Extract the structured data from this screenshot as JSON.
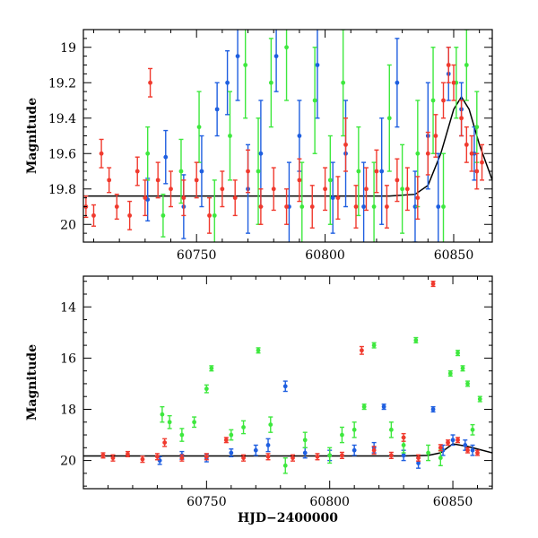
{
  "colors": {
    "blue": "#1f5fe0",
    "green": "#3ee83e",
    "red": "#f03a2e",
    "model": "#000000"
  },
  "chart_data": [
    {
      "type": "scatter",
      "panel": "top",
      "title": "",
      "xlabel": "",
      "ylabel": "Magnitude",
      "xlim": [
        60706,
        60865
      ],
      "ylim": [
        20.1,
        18.9
      ],
      "yaxis_inverted": true,
      "xticks": [
        60750,
        60800,
        60850
      ],
      "yticks": [
        19,
        19.2,
        19.4,
        19.6,
        19.8,
        20
      ],
      "grid": false,
      "legend": "none",
      "series": [
        {
          "color": "blue",
          "points": [
            [
              60731,
              19.86,
              0.12
            ],
            [
              60738,
              19.62,
              0.15
            ],
            [
              60745,
              19.9,
              0.18
            ],
            [
              60752,
              19.7,
              0.2
            ],
            [
              60758,
              19.35,
              0.15
            ],
            [
              60762,
              19.2,
              0.18
            ],
            [
              60766,
              19.05,
              0.25
            ],
            [
              60770,
              19.8,
              0.25
            ],
            [
              60775,
              19.6,
              0.3
            ],
            [
              60781,
              19.05,
              0.2
            ],
            [
              60786,
              19.9,
              0.25
            ],
            [
              60790,
              19.5,
              0.2
            ],
            [
              60797,
              19.1,
              0.3
            ],
            [
              60803,
              19.85,
              0.2
            ],
            [
              60808,
              19.6,
              0.3
            ],
            [
              60815,
              19.9,
              0.25
            ],
            [
              60822,
              19.7,
              0.3
            ],
            [
              60828,
              19.2,
              0.25
            ],
            [
              60835,
              19.9,
              0.2
            ],
            [
              60840,
              19.5,
              0.3
            ],
            [
              60844,
              19.9,
              0.3
            ],
            [
              60848,
              19.15,
              0.15
            ],
            [
              60853,
              19.35,
              0.15
            ],
            [
              60858,
              19.6,
              0.15
            ]
          ]
        },
        {
          "color": "green",
          "points": [
            [
              60731,
              19.6,
              0.15
            ],
            [
              60737,
              19.95,
              0.12
            ],
            [
              60744,
              19.7,
              0.18
            ],
            [
              60751,
              19.45,
              0.2
            ],
            [
              60757,
              19.95,
              0.2
            ],
            [
              60763,
              19.5,
              0.25
            ],
            [
              60769,
              19.1,
              0.3
            ],
            [
              60774,
              19.7,
              0.3
            ],
            [
              60779,
              19.2,
              0.25
            ],
            [
              60785,
              19.0,
              0.3
            ],
            [
              60791,
              19.9,
              0.25
            ],
            [
              60796,
              19.3,
              0.3
            ],
            [
              60802,
              19.75,
              0.25
            ],
            [
              60807,
              19.2,
              0.3
            ],
            [
              60813,
              19.7,
              0.25
            ],
            [
              60819,
              19.9,
              0.25
            ],
            [
              60825,
              19.4,
              0.3
            ],
            [
              60830,
              19.8,
              0.25
            ],
            [
              60836,
              19.6,
              0.3
            ],
            [
              60842,
              19.3,
              0.3
            ],
            [
              60846,
              19.9,
              0.3
            ],
            [
              60851,
              19.2,
              0.2
            ],
            [
              60855,
              19.1,
              0.2
            ],
            [
              60859,
              19.45,
              0.2
            ]
          ]
        },
        {
          "color": "red",
          "points": [
            [
              60707,
              19.9,
              0.06
            ],
            [
              60710,
              19.95,
              0.06
            ],
            [
              60713,
              19.6,
              0.08
            ],
            [
              60716,
              19.75,
              0.07
            ],
            [
              60719,
              19.9,
              0.07
            ],
            [
              60724,
              19.95,
              0.08
            ],
            [
              60727,
              19.7,
              0.08
            ],
            [
              60730,
              19.85,
              0.1
            ],
            [
              60732,
              19.2,
              0.08
            ],
            [
              60735,
              19.75,
              0.1
            ],
            [
              60740,
              19.8,
              0.1
            ],
            [
              60745,
              19.85,
              0.1
            ],
            [
              60750,
              19.75,
              0.1
            ],
            [
              60755,
              19.95,
              0.1
            ],
            [
              60760,
              19.8,
              0.1
            ],
            [
              60765,
              19.85,
              0.1
            ],
            [
              60770,
              19.7,
              0.12
            ],
            [
              60775,
              19.9,
              0.1
            ],
            [
              60780,
              19.8,
              0.12
            ],
            [
              60785,
              19.9,
              0.1
            ],
            [
              60790,
              19.75,
              0.12
            ],
            [
              60795,
              19.9,
              0.12
            ],
            [
              60800,
              19.8,
              0.12
            ],
            [
              60805,
              19.85,
              0.12
            ],
            [
              60808,
              19.55,
              0.15
            ],
            [
              60812,
              19.9,
              0.12
            ],
            [
              60816,
              19.8,
              0.12
            ],
            [
              60820,
              19.7,
              0.12
            ],
            [
              60824,
              19.9,
              0.12
            ],
            [
              60828,
              19.75,
              0.12
            ],
            [
              60832,
              19.8,
              0.12
            ],
            [
              60836,
              19.85,
              0.12
            ],
            [
              60840,
              19.6,
              0.12
            ],
            [
              60843,
              19.5,
              0.12
            ],
            [
              60846,
              19.3,
              0.1
            ],
            [
              60848,
              19.1,
              0.1
            ],
            [
              60850,
              19.2,
              0.1
            ],
            [
              60853,
              19.4,
              0.1
            ],
            [
              60855,
              19.55,
              0.1
            ],
            [
              60857,
              19.6,
              0.1
            ],
            [
              60859,
              19.7,
              0.1
            ],
            [
              60861,
              19.65,
              0.1
            ]
          ]
        }
      ],
      "model_curve": {
        "color": "model",
        "x": [
          60706,
          60735,
          60760,
          60790,
          60810,
          60825,
          60835,
          60840,
          60845,
          60850,
          60853,
          60856,
          60860,
          60865
        ],
        "y": [
          19.84,
          19.84,
          19.84,
          19.84,
          19.84,
          19.84,
          19.83,
          19.78,
          19.6,
          19.35,
          19.28,
          19.35,
          19.55,
          19.75
        ]
      }
    },
    {
      "type": "scatter",
      "panel": "bottom",
      "title": "",
      "xlabel": "HJD−2400000",
      "ylabel": "Magnitude",
      "xlim": [
        60700,
        60866
      ],
      "ylim": [
        21.1,
        12.8
      ],
      "yaxis_inverted": true,
      "xticks": [
        60750,
        60800,
        60850
      ],
      "yticks": [
        14,
        16,
        18,
        20
      ],
      "grid": false,
      "legend": "none",
      "series": [
        {
          "color": "blue",
          "points": [
            [
              60731,
              20.0,
              0.15
            ],
            [
              60740,
              19.8,
              0.15
            ],
            [
              60750,
              19.9,
              0.15
            ],
            [
              60760,
              19.7,
              0.15
            ],
            [
              60770,
              19.6,
              0.2
            ],
            [
              60775,
              19.4,
              0.25
            ],
            [
              60782,
              17.1,
              0.2
            ],
            [
              60790,
              19.7,
              0.2
            ],
            [
              60800,
              19.8,
              0.2
            ],
            [
              60810,
              19.6,
              0.2
            ],
            [
              60818,
              19.5,
              0.2
            ],
            [
              60822,
              17.9,
              0.1
            ],
            [
              60830,
              19.8,
              0.2
            ],
            [
              60836,
              20.1,
              0.2
            ],
            [
              60842,
              18.0,
              0.1
            ],
            [
              60846,
              19.6,
              0.2
            ],
            [
              60850,
              19.2,
              0.2
            ],
            [
              60855,
              19.4,
              0.2
            ],
            [
              60858,
              19.6,
              0.2
            ]
          ]
        },
        {
          "color": "green",
          "points": [
            [
              60732,
              18.2,
              0.3
            ],
            [
              60735,
              18.5,
              0.25
            ],
            [
              60740,
              19.0,
              0.25
            ],
            [
              60745,
              18.5,
              0.2
            ],
            [
              60750,
              17.2,
              0.15
            ],
            [
              60752,
              16.4,
              0.1
            ],
            [
              60760,
              19.0,
              0.2
            ],
            [
              60765,
              18.7,
              0.25
            ],
            [
              60771,
              15.7,
              0.1
            ],
            [
              60776,
              18.6,
              0.3
            ],
            [
              60782,
              20.2,
              0.3
            ],
            [
              60790,
              19.2,
              0.3
            ],
            [
              60800,
              19.8,
              0.3
            ],
            [
              60805,
              19.0,
              0.3
            ],
            [
              60810,
              18.8,
              0.3
            ],
            [
              60814,
              17.9,
              0.1
            ],
            [
              60818,
              15.5,
              0.1
            ],
            [
              60825,
              18.8,
              0.3
            ],
            [
              60830,
              19.4,
              0.3
            ],
            [
              60835,
              15.3,
              0.1
            ],
            [
              60840,
              19.7,
              0.3
            ],
            [
              60845,
              19.9,
              0.3
            ],
            [
              60849,
              16.6,
              0.1
            ],
            [
              60852,
              15.8,
              0.1
            ],
            [
              60854,
              16.4,
              0.1
            ],
            [
              60856,
              17.0,
              0.1
            ],
            [
              60858,
              18.8,
              0.2
            ],
            [
              60861,
              17.6,
              0.1
            ]
          ]
        },
        {
          "color": "red",
          "points": [
            [
              60708,
              19.8,
              0.1
            ],
            [
              60712,
              19.9,
              0.12
            ],
            [
              60718,
              19.75,
              0.1
            ],
            [
              60724,
              19.95,
              0.12
            ],
            [
              60730,
              19.85,
              0.12
            ],
            [
              60733,
              19.3,
              0.15
            ],
            [
              60740,
              19.9,
              0.12
            ],
            [
              60750,
              19.85,
              0.12
            ],
            [
              60758,
              19.2,
              0.1
            ],
            [
              60765,
              19.9,
              0.12
            ],
            [
              60775,
              19.85,
              0.12
            ],
            [
              60785,
              19.9,
              0.12
            ],
            [
              60795,
              19.85,
              0.12
            ],
            [
              60805,
              19.8,
              0.12
            ],
            [
              60813,
              15.7,
              0.15
            ],
            [
              60818,
              19.6,
              0.15
            ],
            [
              60825,
              19.8,
              0.12
            ],
            [
              60830,
              19.1,
              0.15
            ],
            [
              60836,
              19.9,
              0.12
            ],
            [
              60842,
              13.1,
              0.1
            ],
            [
              60845,
              19.5,
              0.12
            ],
            [
              60848,
              19.3,
              0.1
            ],
            [
              60852,
              19.2,
              0.1
            ],
            [
              60856,
              19.6,
              0.1
            ],
            [
              60860,
              19.7,
              0.1
            ]
          ]
        }
      ],
      "model_curve": {
        "color": "model",
        "x": [
          60700,
          60740,
          60790,
          60830,
          60840,
          60845,
          60850,
          60856,
          60866
        ],
        "y": [
          19.82,
          19.82,
          19.82,
          19.82,
          19.8,
          19.7,
          19.35,
          19.45,
          19.7
        ]
      }
    }
  ]
}
